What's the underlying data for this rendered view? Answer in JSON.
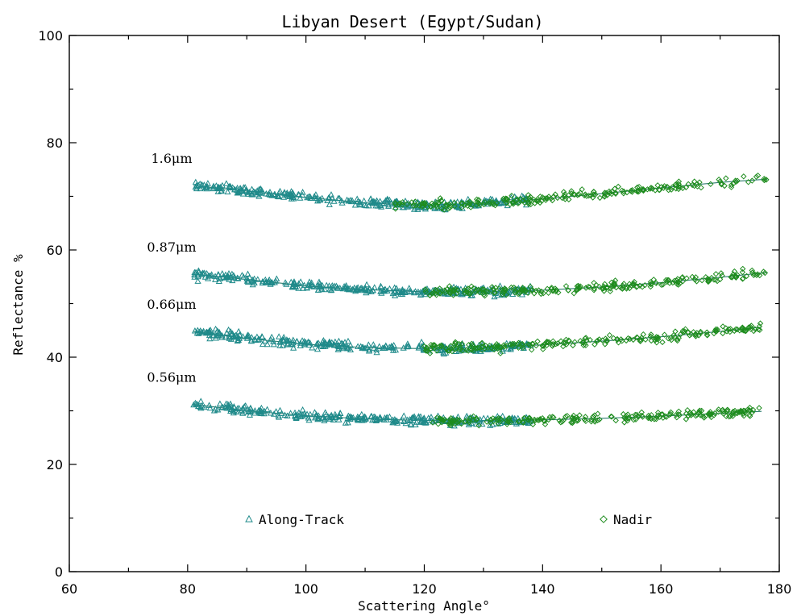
{
  "chart_data": {
    "type": "scatter",
    "title": "Libyan Desert (Egypt/Sudan)",
    "xlabel": "Scattering Angle°",
    "ylabel": "Reflectance %",
    "xlim": [
      60,
      180
    ],
    "ylim": [
      0,
      100
    ],
    "xticks": [
      "60",
      "80",
      "100",
      "120",
      "140",
      "160",
      "180"
    ],
    "yticks": [
      "0",
      "20",
      "40",
      "60",
      "80",
      "100"
    ],
    "grid": false,
    "legend_placement": "bottom",
    "colors": {
      "along_track": "#1f8a8a",
      "nadir": "#1e8c1e"
    },
    "legend": [
      {
        "name": "Along-Track",
        "marker": "triangle",
        "color": "#1f8a8a"
      },
      {
        "name": "Nadir",
        "marker": "diamond",
        "color": "#1e8c1e"
      }
    ],
    "bands": [
      {
        "label": "1.6μm",
        "along_track_range": [
          81,
          138
        ],
        "nadir_range": [
          115,
          178
        ],
        "curve": [
          [
            81,
            72.0
          ],
          [
            90,
            71.0
          ],
          [
            100,
            69.8
          ],
          [
            110,
            68.8
          ],
          [
            120,
            68.3
          ],
          [
            130,
            68.7
          ],
          [
            140,
            69.5
          ],
          [
            150,
            70.5
          ],
          [
            160,
            71.6
          ],
          [
            170,
            72.6
          ],
          [
            178,
            73.2
          ]
        ]
      },
      {
        "label": "0.87μm",
        "along_track_range": [
          81,
          138
        ],
        "nadir_range": [
          120,
          178
        ],
        "curve": [
          [
            81,
            55.5
          ],
          [
            90,
            54.5
          ],
          [
            100,
            53.3
          ],
          [
            110,
            52.6
          ],
          [
            120,
            52.2
          ],
          [
            130,
            52.2
          ],
          [
            140,
            52.5
          ],
          [
            150,
            53.1
          ],
          [
            160,
            53.9
          ],
          [
            170,
            54.9
          ],
          [
            178,
            55.8
          ]
        ]
      },
      {
        "label": "0.66μm",
        "along_track_range": [
          81,
          138
        ],
        "nadir_range": [
          120,
          177
        ],
        "curve": [
          [
            81,
            44.8
          ],
          [
            90,
            43.5
          ],
          [
            100,
            42.4
          ],
          [
            110,
            41.8
          ],
          [
            120,
            41.6
          ],
          [
            130,
            41.8
          ],
          [
            140,
            42.3
          ],
          [
            150,
            43.0
          ],
          [
            160,
            43.8
          ],
          [
            170,
            44.8
          ],
          [
            177,
            45.6
          ]
        ]
      },
      {
        "label": "0.56μm",
        "along_track_range": [
          81,
          138
        ],
        "nadir_range": [
          121,
          177
        ],
        "curve": [
          [
            81,
            31.2
          ],
          [
            90,
            30.0
          ],
          [
            100,
            29.1
          ],
          [
            110,
            28.5
          ],
          [
            120,
            28.2
          ],
          [
            130,
            28.1
          ],
          [
            140,
            28.3
          ],
          [
            150,
            28.6
          ],
          [
            160,
            29.0
          ],
          [
            170,
            29.5
          ],
          [
            177,
            29.9
          ]
        ]
      }
    ]
  }
}
